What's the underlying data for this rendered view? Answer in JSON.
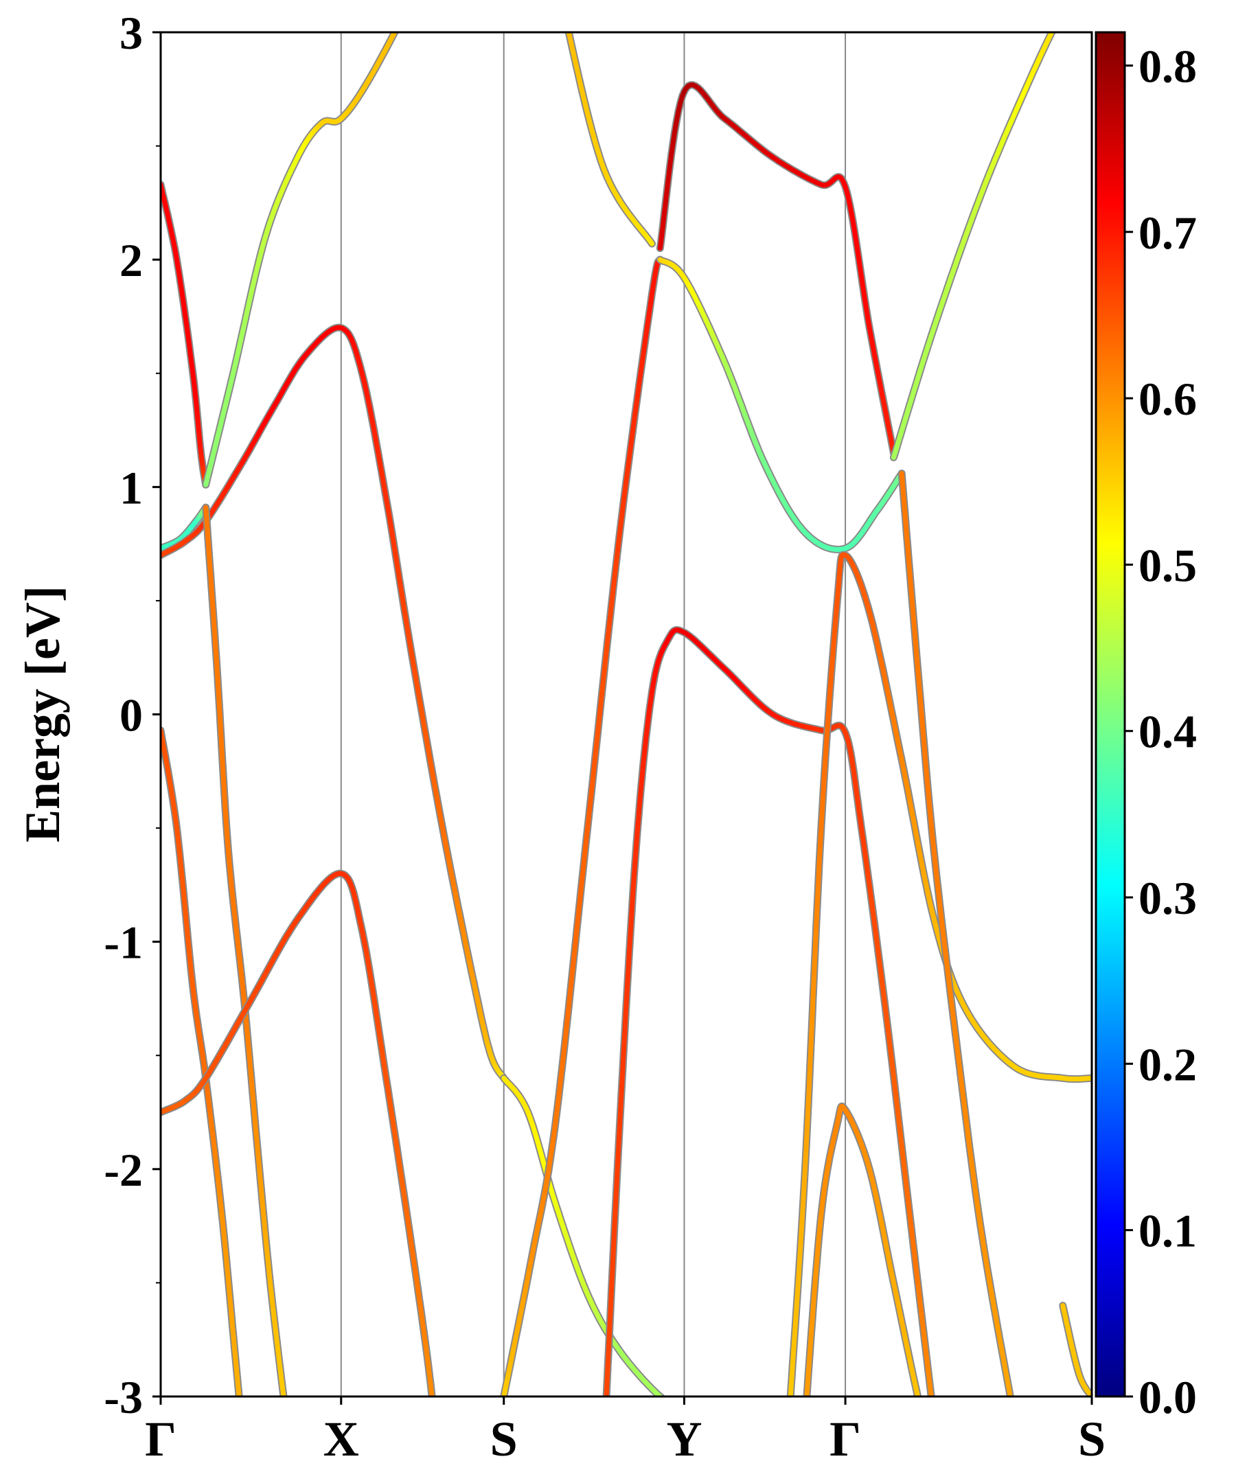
{
  "chart_data": {
    "type": "line",
    "title": "",
    "xlabel": "",
    "ylabel": "Energy [eV]",
    "ylim": [
      -3,
      3
    ],
    "xlim": [
      0,
      5.78
    ],
    "grid": false,
    "kpoints": [
      {
        "label": "Γ",
        "x": 0.0
      },
      {
        "label": "X",
        "x": 1.12
      },
      {
        "label": "S",
        "x": 2.13
      },
      {
        "label": "Y",
        "x": 3.25
      },
      {
        "label": "Γ",
        "x": 4.25
      },
      {
        "label": "S",
        "x": 5.78
      }
    ],
    "yticks": [
      -3,
      -2,
      -1,
      0,
      1,
      2,
      3
    ],
    "ytick_labels": [
      "-3",
      "-2",
      "-1",
      "0",
      "1",
      "2",
      "3"
    ],
    "colorbar": {
      "colormap": "jet",
      "range": [
        0.0,
        0.82
      ],
      "ticks": [
        0.0,
        0.1,
        0.2,
        0.3,
        0.4,
        0.5,
        0.6,
        0.7,
        0.8
      ],
      "tick_labels": [
        "0.0",
        "0.1",
        "0.2",
        "0.3",
        "0.4",
        "0.5",
        "0.6",
        "0.7",
        "0.8"
      ]
    },
    "series": [
      {
        "points": [
          [
            0.0,
            0.73,
            0.35
          ],
          [
            0.12,
            0.77,
            0.36
          ],
          [
            0.22,
            0.85,
            0.35
          ],
          [
            0.28,
            0.91,
            0.45
          ]
        ]
      },
      {
        "points": [
          [
            0.0,
            2.33,
            0.71
          ],
          [
            0.1,
            2.0,
            0.72
          ],
          [
            0.2,
            1.5,
            0.72
          ],
          [
            0.25,
            1.15,
            0.7
          ],
          [
            0.28,
            1.01,
            0.65
          ]
        ]
      },
      {
        "points": [
          [
            0.28,
            1.01,
            0.42
          ],
          [
            0.45,
            1.5,
            0.43
          ],
          [
            0.65,
            2.1,
            0.46
          ],
          [
            0.85,
            2.45,
            0.5
          ],
          [
            1.0,
            2.6,
            0.55
          ],
          [
            1.12,
            2.62,
            0.55
          ],
          [
            1.3,
            2.8,
            0.56
          ],
          [
            1.6,
            3.2,
            0.57
          ]
        ]
      },
      {
        "points": [
          [
            0.0,
            0.7,
            0.66
          ],
          [
            0.15,
            0.76,
            0.67
          ],
          [
            0.28,
            0.85,
            0.68
          ],
          [
            0.5,
            1.1,
            0.7
          ],
          [
            0.7,
            1.35,
            0.72
          ],
          [
            0.9,
            1.58,
            0.72
          ],
          [
            1.12,
            1.7,
            0.72
          ],
          [
            1.25,
            1.5,
            0.7
          ],
          [
            1.4,
            0.95,
            0.68
          ],
          [
            1.55,
            0.3,
            0.66
          ],
          [
            1.75,
            -0.5,
            0.63
          ],
          [
            1.95,
            -1.2,
            0.59
          ],
          [
            2.05,
            -1.5,
            0.56
          ],
          [
            2.13,
            -1.6,
            0.53
          ]
        ]
      },
      {
        "points": [
          [
            2.13,
            -1.6,
            0.53
          ],
          [
            2.28,
            -1.75,
            0.53
          ],
          [
            2.45,
            -2.15,
            0.5
          ],
          [
            2.65,
            -2.55,
            0.47
          ],
          [
            2.85,
            -2.8,
            0.44
          ],
          [
            3.1,
            -3.0,
            0.44
          ],
          [
            3.25,
            -3.05,
            0.44
          ]
        ]
      },
      {
        "points": [
          [
            0.28,
            0.91,
            0.62
          ],
          [
            0.35,
            0.2,
            0.62
          ],
          [
            0.42,
            -0.6,
            0.62
          ],
          [
            0.52,
            -1.27,
            0.62
          ],
          [
            0.6,
            -1.9,
            0.6
          ],
          [
            0.68,
            -2.5,
            0.57
          ],
          [
            0.78,
            -3.1,
            0.55
          ]
        ]
      },
      {
        "points": [
          [
            0.0,
            -0.07,
            0.65
          ],
          [
            0.1,
            -0.5,
            0.65
          ],
          [
            0.2,
            -1.2,
            0.64
          ],
          [
            0.28,
            -1.6,
            0.63
          ],
          [
            0.38,
            -2.2,
            0.6
          ],
          [
            0.46,
            -2.8,
            0.58
          ],
          [
            0.5,
            -3.1,
            0.57
          ]
        ]
      },
      {
        "points": [
          [
            0.0,
            -1.75,
            0.64
          ],
          [
            0.15,
            -1.7,
            0.64
          ],
          [
            0.28,
            -1.6,
            0.65
          ],
          [
            0.55,
            -1.27,
            0.66
          ],
          [
            0.85,
            -0.9,
            0.67
          ],
          [
            1.12,
            -0.7,
            0.68
          ],
          [
            1.25,
            -0.95,
            0.67
          ],
          [
            1.4,
            -1.6,
            0.65
          ],
          [
            1.55,
            -2.3,
            0.63
          ],
          [
            1.65,
            -2.8,
            0.61
          ],
          [
            1.7,
            -3.1,
            0.6
          ]
        ]
      },
      {
        "points": [
          [
            2.13,
            -3.0,
            0.55
          ],
          [
            2.3,
            -2.4,
            0.6
          ],
          [
            2.45,
            -1.8,
            0.62
          ],
          [
            2.65,
            -0.5,
            0.64
          ],
          [
            2.85,
            0.8,
            0.67
          ],
          [
            3.05,
            1.85,
            0.7
          ],
          [
            3.1,
            2.0,
            0.7
          ]
        ]
      },
      {
        "points": [
          [
            2.76,
            -3.1,
            0.66
          ],
          [
            2.85,
            -1.8,
            0.67
          ],
          [
            2.95,
            -0.6,
            0.68
          ],
          [
            3.05,
            0.1,
            0.7
          ],
          [
            3.15,
            0.33,
            0.72
          ],
          [
            3.25,
            0.36,
            0.73
          ],
          [
            3.5,
            0.2,
            0.72
          ],
          [
            3.8,
            -0.0,
            0.7
          ],
          [
            4.1,
            -0.07,
            0.68
          ],
          [
            4.25,
            -0.08,
            0.67
          ],
          [
            4.35,
            -0.5,
            0.67
          ],
          [
            4.5,
            -1.3,
            0.65
          ],
          [
            4.65,
            -2.2,
            0.63
          ],
          [
            4.8,
            -3.1,
            0.6
          ]
        ]
      },
      {
        "points": [
          [
            2.5,
            3.1,
            0.57
          ],
          [
            2.75,
            2.4,
            0.55
          ],
          [
            3.05,
            2.07,
            0.53
          ]
        ]
      },
      {
        "points": [
          [
            3.1,
            2.0,
            0.55
          ],
          [
            3.25,
            1.92,
            0.53
          ],
          [
            3.5,
            1.55,
            0.45
          ],
          [
            3.75,
            1.1,
            0.4
          ],
          [
            4.0,
            0.8,
            0.38
          ],
          [
            4.25,
            0.73,
            0.37
          ],
          [
            4.45,
            0.9,
            0.38
          ],
          [
            4.6,
            1.06,
            0.4
          ]
        ]
      },
      {
        "points": [
          [
            3.1,
            2.05,
            0.74
          ],
          [
            3.25,
            2.74,
            0.78
          ],
          [
            3.5,
            2.62,
            0.76
          ],
          [
            3.8,
            2.45,
            0.74
          ],
          [
            4.1,
            2.33,
            0.73
          ],
          [
            4.25,
            2.32,
            0.72
          ],
          [
            4.4,
            1.7,
            0.71
          ],
          [
            4.55,
            1.15,
            0.69
          ]
        ]
      },
      {
        "points": [
          [
            4.55,
            1.13,
            0.44
          ],
          [
            4.8,
            1.7,
            0.45
          ],
          [
            5.1,
            2.3,
            0.47
          ],
          [
            5.4,
            2.8,
            0.52
          ],
          [
            5.6,
            3.1,
            0.55
          ]
        ]
      },
      {
        "points": [
          [
            3.9,
            -3.1,
            0.55
          ],
          [
            4.0,
            -2.0,
            0.58
          ],
          [
            4.1,
            -0.5,
            0.62
          ],
          [
            4.2,
            0.5,
            0.65
          ],
          [
            4.25,
            0.7,
            0.65
          ],
          [
            4.4,
            0.45,
            0.64
          ],
          [
            4.6,
            -0.2,
            0.61
          ],
          [
            4.8,
            -0.9,
            0.57
          ],
          [
            5.0,
            -1.3,
            0.56
          ],
          [
            5.3,
            -1.55,
            0.55
          ],
          [
            5.6,
            -1.6,
            0.55
          ],
          [
            5.78,
            -1.6,
            0.55
          ]
        ]
      },
      {
        "points": [
          [
            4.6,
            1.06,
            0.62
          ],
          [
            4.7,
            0.2,
            0.62
          ],
          [
            4.8,
            -0.6,
            0.62
          ],
          [
            4.95,
            -1.5,
            0.61
          ],
          [
            5.1,
            -2.3,
            0.6
          ],
          [
            5.3,
            -3.1,
            0.58
          ]
        ]
      },
      {
        "points": [
          [
            4.0,
            -3.1,
            0.59
          ],
          [
            4.1,
            -2.2,
            0.6
          ],
          [
            4.2,
            -1.8,
            0.61
          ],
          [
            4.25,
            -1.74,
            0.61
          ],
          [
            4.4,
            -2.0,
            0.6
          ],
          [
            4.55,
            -2.5,
            0.58
          ],
          [
            4.7,
            -3.0,
            0.56
          ],
          [
            4.75,
            -3.1,
            0.55
          ]
        ]
      },
      {
        "points": [
          [
            5.6,
            -2.6,
            0.56
          ],
          [
            5.7,
            -2.9,
            0.56
          ],
          [
            5.78,
            -3.0,
            0.56
          ]
        ]
      }
    ]
  }
}
